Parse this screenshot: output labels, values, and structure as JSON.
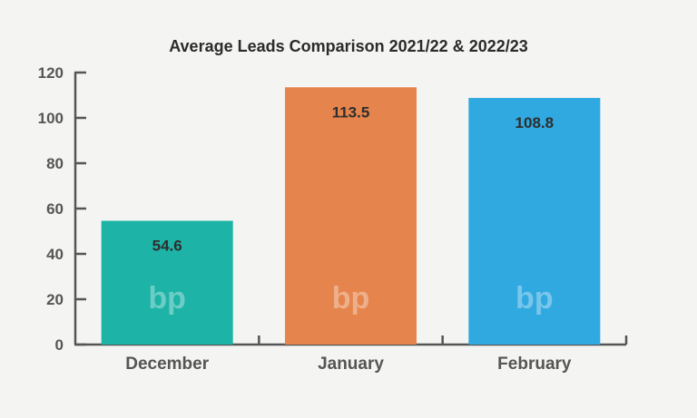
{
  "chart_data": {
    "type": "bar",
    "title": "Average Leads Comparison 2021/22 & 2022/23",
    "categories": [
      "December",
      "January",
      "February"
    ],
    "values": [
      54.6,
      113.5,
      108.8
    ],
    "value_labels": [
      "54.6",
      "113.5",
      "108.8"
    ],
    "colors": [
      "#1db3a6",
      "#e5854d",
      "#30a8e0"
    ],
    "ylim": [
      0,
      120
    ],
    "yticks": [
      "0",
      "20",
      "40",
      "60",
      "80",
      "100",
      "120"
    ],
    "xlabel": "",
    "ylabel": "",
    "grid": false,
    "legend": "none",
    "watermark": "bp"
  }
}
